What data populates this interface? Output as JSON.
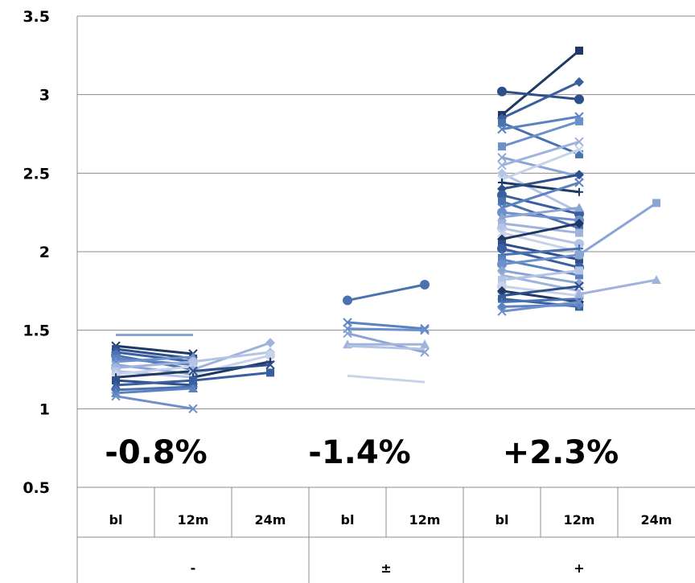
{
  "chart_data": {
    "type": "line",
    "ylim": [
      0.5,
      3.5
    ],
    "yticks": [
      "0.5",
      "1",
      "1.5",
      "2",
      "2.5",
      "3",
      "3.5"
    ],
    "grid": true,
    "legend": "none",
    "groups": [
      {
        "label": "-",
        "categories": [
          "bl",
          "12m",
          "24m"
        ]
      },
      {
        "label": "±",
        "categories": [
          "bl",
          "12m"
        ]
      },
      {
        "label": "+",
        "categories": [
          "bl",
          "12m",
          "24m"
        ]
      }
    ],
    "annotations": [
      "-0.8%",
      "-1.4%",
      "+2.3%"
    ],
    "colors": [
      "#1f3864",
      "#2e4f8a",
      "#3a5f9e",
      "#4a72b0",
      "#5b82c0",
      "#6d8fcc",
      "#8aa4d4",
      "#9fb3dc",
      "#b4c4e4",
      "#c8d3ea"
    ],
    "series": [
      {
        "group": 0,
        "values": [
          1.4,
          1.35
        ],
        "marker": "cross"
      },
      {
        "group": 0,
        "values": [
          1.38,
          1.32
        ],
        "marker": "square"
      },
      {
        "group": 0,
        "values": [
          1.36,
          1.3
        ],
        "marker": "diamond"
      },
      {
        "group": 0,
        "values": [
          1.34,
          1.25
        ],
        "marker": "circle"
      },
      {
        "group": 0,
        "values": [
          1.32,
          1.28
        ],
        "marker": "square"
      },
      {
        "group": 0,
        "values": [
          1.3,
          1.33
        ],
        "marker": "triangle"
      },
      {
        "group": 0,
        "values": [
          1.28,
          1.22
        ],
        "marker": "cross"
      },
      {
        "group": 0,
        "values": [
          1.26,
          1.3
        ],
        "marker": "circle"
      },
      {
        "group": 0,
        "values": [
          1.24,
          1.2
        ],
        "marker": "square"
      },
      {
        "group": 0,
        "values": [
          1.22,
          1.27
        ],
        "marker": "diamond"
      },
      {
        "group": 0,
        "values": [
          1.2,
          1.24
        ],
        "marker": "plus"
      },
      {
        "group": 0,
        "values": [
          1.18,
          1.15
        ],
        "marker": "square"
      },
      {
        "group": 0,
        "values": [
          1.15,
          1.18
        ],
        "marker": "triangle"
      },
      {
        "group": 0,
        "values": [
          1.12,
          1.14
        ],
        "marker": "diamond"
      },
      {
        "group": 0,
        "values": [
          1.1,
          1.13
        ],
        "marker": "triangle"
      },
      {
        "group": 0,
        "values": [
          1.08,
          1.0
        ],
        "marker": "cross"
      },
      {
        "group": 0,
        "values": [
          1.47,
          1.47
        ],
        "marker": "none"
      },
      {
        "group": 0,
        "values": [
          null,
          1.25,
          1.42
        ],
        "marker": "diamond"
      },
      {
        "group": 0,
        "values": [
          null,
          1.3,
          1.36
        ],
        "marker": "diamond"
      },
      {
        "group": 0,
        "values": [
          null,
          1.22,
          1.34
        ],
        "marker": "circle"
      },
      {
        "group": 0,
        "values": [
          null,
          1.2,
          1.3
        ],
        "marker": "plus"
      },
      {
        "group": 0,
        "values": [
          null,
          1.24,
          1.28
        ],
        "marker": "cross"
      },
      {
        "group": 0,
        "values": [
          null,
          1.18,
          1.23
        ],
        "marker": "square"
      },
      {
        "group": 1,
        "values": [
          1.69,
          1.79
        ],
        "marker": "circle"
      },
      {
        "group": 1,
        "values": [
          1.55,
          1.51
        ],
        "marker": "cross"
      },
      {
        "group": 1,
        "values": [
          1.51,
          1.5
        ],
        "marker": "cross"
      },
      {
        "group": 1,
        "values": [
          1.48,
          1.36
        ],
        "marker": "cross"
      },
      {
        "group": 1,
        "values": [
          1.41,
          1.41
        ],
        "marker": "triangle"
      },
      {
        "group": 1,
        "values": [
          1.4,
          1.38
        ],
        "marker": "none"
      },
      {
        "group": 1,
        "values": [
          1.21,
          1.17
        ],
        "marker": "none"
      },
      {
        "group": 2,
        "values": [
          2.87,
          3.28
        ],
        "marker": "square"
      },
      {
        "group": 2,
        "values": [
          3.02,
          2.97
        ],
        "marker": "circle"
      },
      {
        "group": 2,
        "values": [
          2.85,
          3.08
        ],
        "marker": "diamond"
      },
      {
        "group": 2,
        "values": [
          2.82,
          2.62
        ],
        "marker": "square"
      },
      {
        "group": 2,
        "values": [
          2.78,
          2.86
        ],
        "marker": "cross"
      },
      {
        "group": 2,
        "values": [
          2.67,
          2.83
        ],
        "marker": "square"
      },
      {
        "group": 2,
        "values": [
          2.6,
          2.48
        ],
        "marker": "cross"
      },
      {
        "group": 2,
        "values": [
          2.55,
          2.7
        ],
        "marker": "cross"
      },
      {
        "group": 2,
        "values": [
          2.5,
          2.25
        ],
        "marker": "diamond"
      },
      {
        "group": 2,
        "values": [
          2.46,
          2.65
        ],
        "marker": "cross"
      },
      {
        "group": 2,
        "values": [
          2.44,
          2.38
        ],
        "marker": "plus"
      },
      {
        "group": 2,
        "values": [
          2.4,
          2.49
        ],
        "marker": "diamond"
      },
      {
        "group": 2,
        "values": [
          2.36,
          2.24
        ],
        "marker": "circle"
      },
      {
        "group": 2,
        "values": [
          2.32,
          2.15
        ],
        "marker": "square"
      },
      {
        "group": 2,
        "values": [
          2.28,
          2.44
        ],
        "marker": "cross"
      },
      {
        "group": 2,
        "values": [
          2.25,
          2.2
        ],
        "marker": "circle"
      },
      {
        "group": 2,
        "values": [
          2.22,
          2.28
        ],
        "marker": "triangle"
      },
      {
        "group": 2,
        "values": [
          2.18,
          2.12
        ],
        "marker": "square"
      },
      {
        "group": 2,
        "values": [
          2.15,
          2.05
        ],
        "marker": "circle"
      },
      {
        "group": 2,
        "values": [
          2.12,
          2.0
        ],
        "marker": "cross"
      },
      {
        "group": 2,
        "values": [
          2.08,
          2.18
        ],
        "marker": "diamond"
      },
      {
        "group": 2,
        "values": [
          2.05,
          1.95
        ],
        "marker": "square"
      },
      {
        "group": 2,
        "values": [
          2.02,
          1.9
        ],
        "marker": "circle"
      },
      {
        "group": 2,
        "values": [
          1.98,
          2.02
        ],
        "marker": "plus"
      },
      {
        "group": 2,
        "values": [
          1.95,
          1.85
        ],
        "marker": "square"
      },
      {
        "group": 2,
        "values": [
          1.92,
          1.98
        ],
        "marker": "circle"
      },
      {
        "group": 2,
        "values": [
          1.88,
          1.8
        ],
        "marker": "diamond"
      },
      {
        "group": 2,
        "values": [
          1.85,
          1.75
        ],
        "marker": "cross"
      },
      {
        "group": 2,
        "values": [
          1.82,
          1.88
        ],
        "marker": "square"
      },
      {
        "group": 2,
        "values": [
          1.78,
          1.72
        ],
        "marker": "circle"
      },
      {
        "group": 2,
        "values": [
          1.75,
          1.68
        ],
        "marker": "diamond"
      },
      {
        "group": 2,
        "values": [
          1.72,
          1.78
        ],
        "marker": "cross"
      },
      {
        "group": 2,
        "values": [
          1.7,
          1.65
        ],
        "marker": "square"
      },
      {
        "group": 2,
        "values": [
          1.68,
          1.7
        ],
        "marker": "plus"
      },
      {
        "group": 2,
        "values": [
          1.65,
          1.66
        ],
        "marker": "diamond"
      },
      {
        "group": 2,
        "values": [
          1.62,
          1.68
        ],
        "marker": "cross"
      },
      {
        "group": 2,
        "values": [
          null,
          1.98,
          2.31
        ],
        "marker": "square"
      },
      {
        "group": 2,
        "values": [
          null,
          1.73,
          1.82
        ],
        "marker": "triangle"
      }
    ]
  }
}
